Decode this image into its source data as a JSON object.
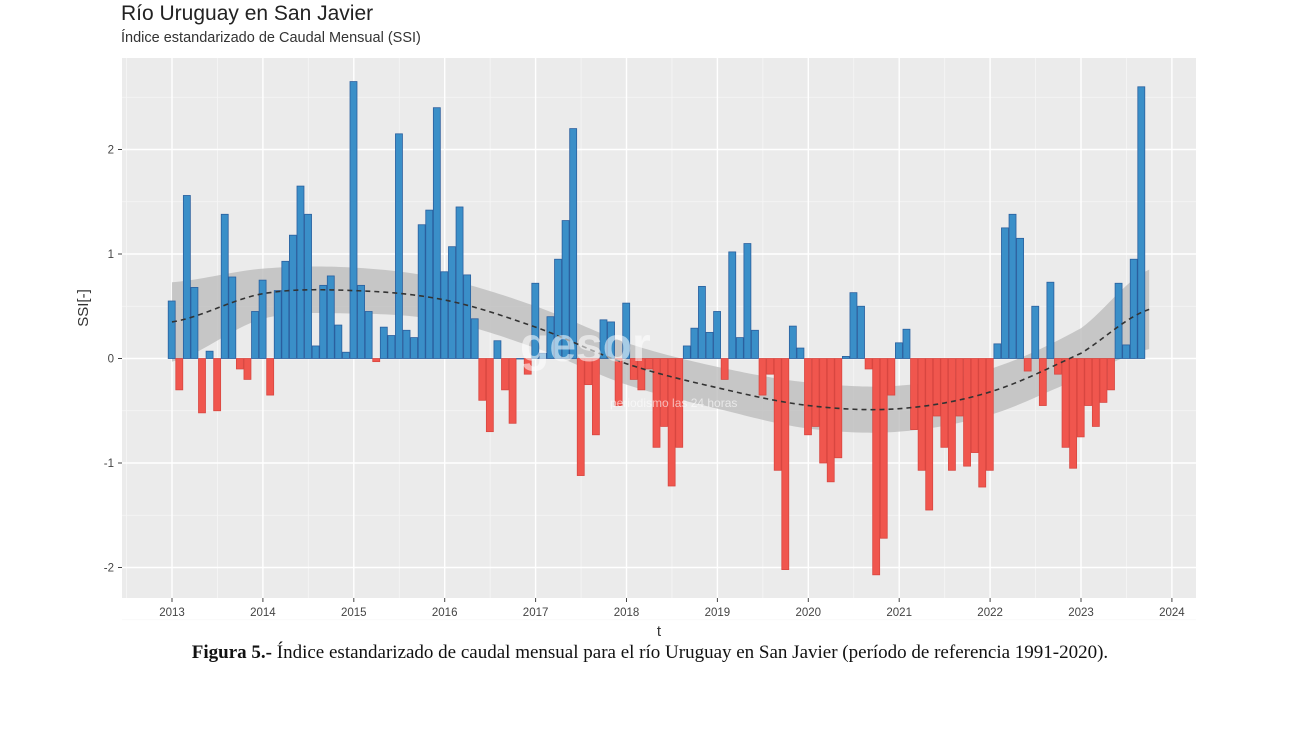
{
  "chart_data": {
    "type": "bar",
    "title": "Río Uruguay en San Javier",
    "subtitle": "Índice estandarizado de Caudal Mensual (SSI)",
    "xlabel": "t",
    "ylabel": "SSI[-]",
    "x_start": "2013-01",
    "frequency": "monthly",
    "xlim": [
      2012.5,
      2024.25
    ],
    "ylim": [
      -2.3,
      2.85
    ],
    "xticks": [
      2013,
      2014,
      2015,
      2016,
      2017,
      2018,
      2019,
      2020,
      2021,
      2022,
      2023,
      2024
    ],
    "yticks": [
      -2,
      -1,
      0,
      1,
      2
    ],
    "grid": true,
    "positive_color": "#3a8fc8",
    "negative_color": "#f0564e",
    "values": [
      0.55,
      -0.3,
      1.56,
      0.68,
      -0.52,
      0.07,
      -0.5,
      1.38,
      0.78,
      -0.1,
      -0.2,
      0.45,
      0.75,
      -0.35,
      0.65,
      0.93,
      1.18,
      1.65,
      1.38,
      0.12,
      0.7,
      0.79,
      0.32,
      0.06,
      2.65,
      0.7,
      0.45,
      -0.03,
      0.3,
      0.22,
      2.15,
      0.27,
      0.2,
      1.28,
      1.42,
      2.4,
      0.83,
      1.07,
      1.45,
      0.8,
      0.38,
      -0.4,
      -0.7,
      0.17,
      -0.3,
      -0.62,
      0.0,
      -0.15,
      0.72,
      0.05,
      0.4,
      0.95,
      1.32,
      2.2,
      -1.12,
      -0.25,
      -0.73,
      0.37,
      0.35,
      -0.45,
      0.53,
      -0.2,
      -0.3,
      -0.1,
      -0.85,
      -0.65,
      -1.22,
      -0.85,
      0.12,
      0.29,
      0.69,
      0.25,
      0.45,
      -0.2,
      1.02,
      0.2,
      1.1,
      0.27,
      -0.35,
      -0.15,
      -1.07,
      -2.02,
      0.31,
      0.1,
      -0.73,
      -0.65,
      -1.0,
      -1.18,
      -0.95,
      0.02,
      0.63,
      0.5,
      -0.1,
      -2.07,
      -1.72,
      -0.35,
      0.15,
      0.28,
      -0.68,
      -1.07,
      -1.45,
      -0.55,
      -0.85,
      -1.07,
      -0.55,
      -1.03,
      -0.9,
      -1.23,
      -1.07,
      0.14,
      1.25,
      1.38,
      1.15,
      -0.12,
      0.5,
      -0.45,
      0.73,
      -0.15,
      -0.85,
      -1.05,
      -0.75,
      -0.45,
      -0.65,
      -0.42,
      -0.3,
      0.72,
      0.13,
      0.95,
      2.6
    ],
    "smooth_trend": {
      "style": "dashed",
      "color": "#333333",
      "band_color": "#bdbdbd",
      "x": [
        2013.0,
        2014.0,
        2015.0,
        2016.0,
        2017.0,
        2018.0,
        2019.0,
        2020.0,
        2021.0,
        2022.0,
        2023.0,
        2023.75
      ],
      "y": [
        0.35,
        0.62,
        0.65,
        0.56,
        0.3,
        -0.05,
        -0.28,
        -0.45,
        -0.48,
        -0.32,
        0.05,
        0.47
      ],
      "band_halfwidth": [
        0.38,
        0.24,
        0.22,
        0.2,
        0.2,
        0.2,
        0.2,
        0.22,
        0.22,
        0.22,
        0.24,
        0.38
      ]
    }
  },
  "watermark": {
    "brand": "gesor",
    "tagline": "periodismo las 24 horas"
  },
  "caption": {
    "label": "Figura 5.-",
    "text": " Índice estandarizado de caudal mensual para el río Uruguay en San Javier (período de referencia 1991-2020)."
  }
}
